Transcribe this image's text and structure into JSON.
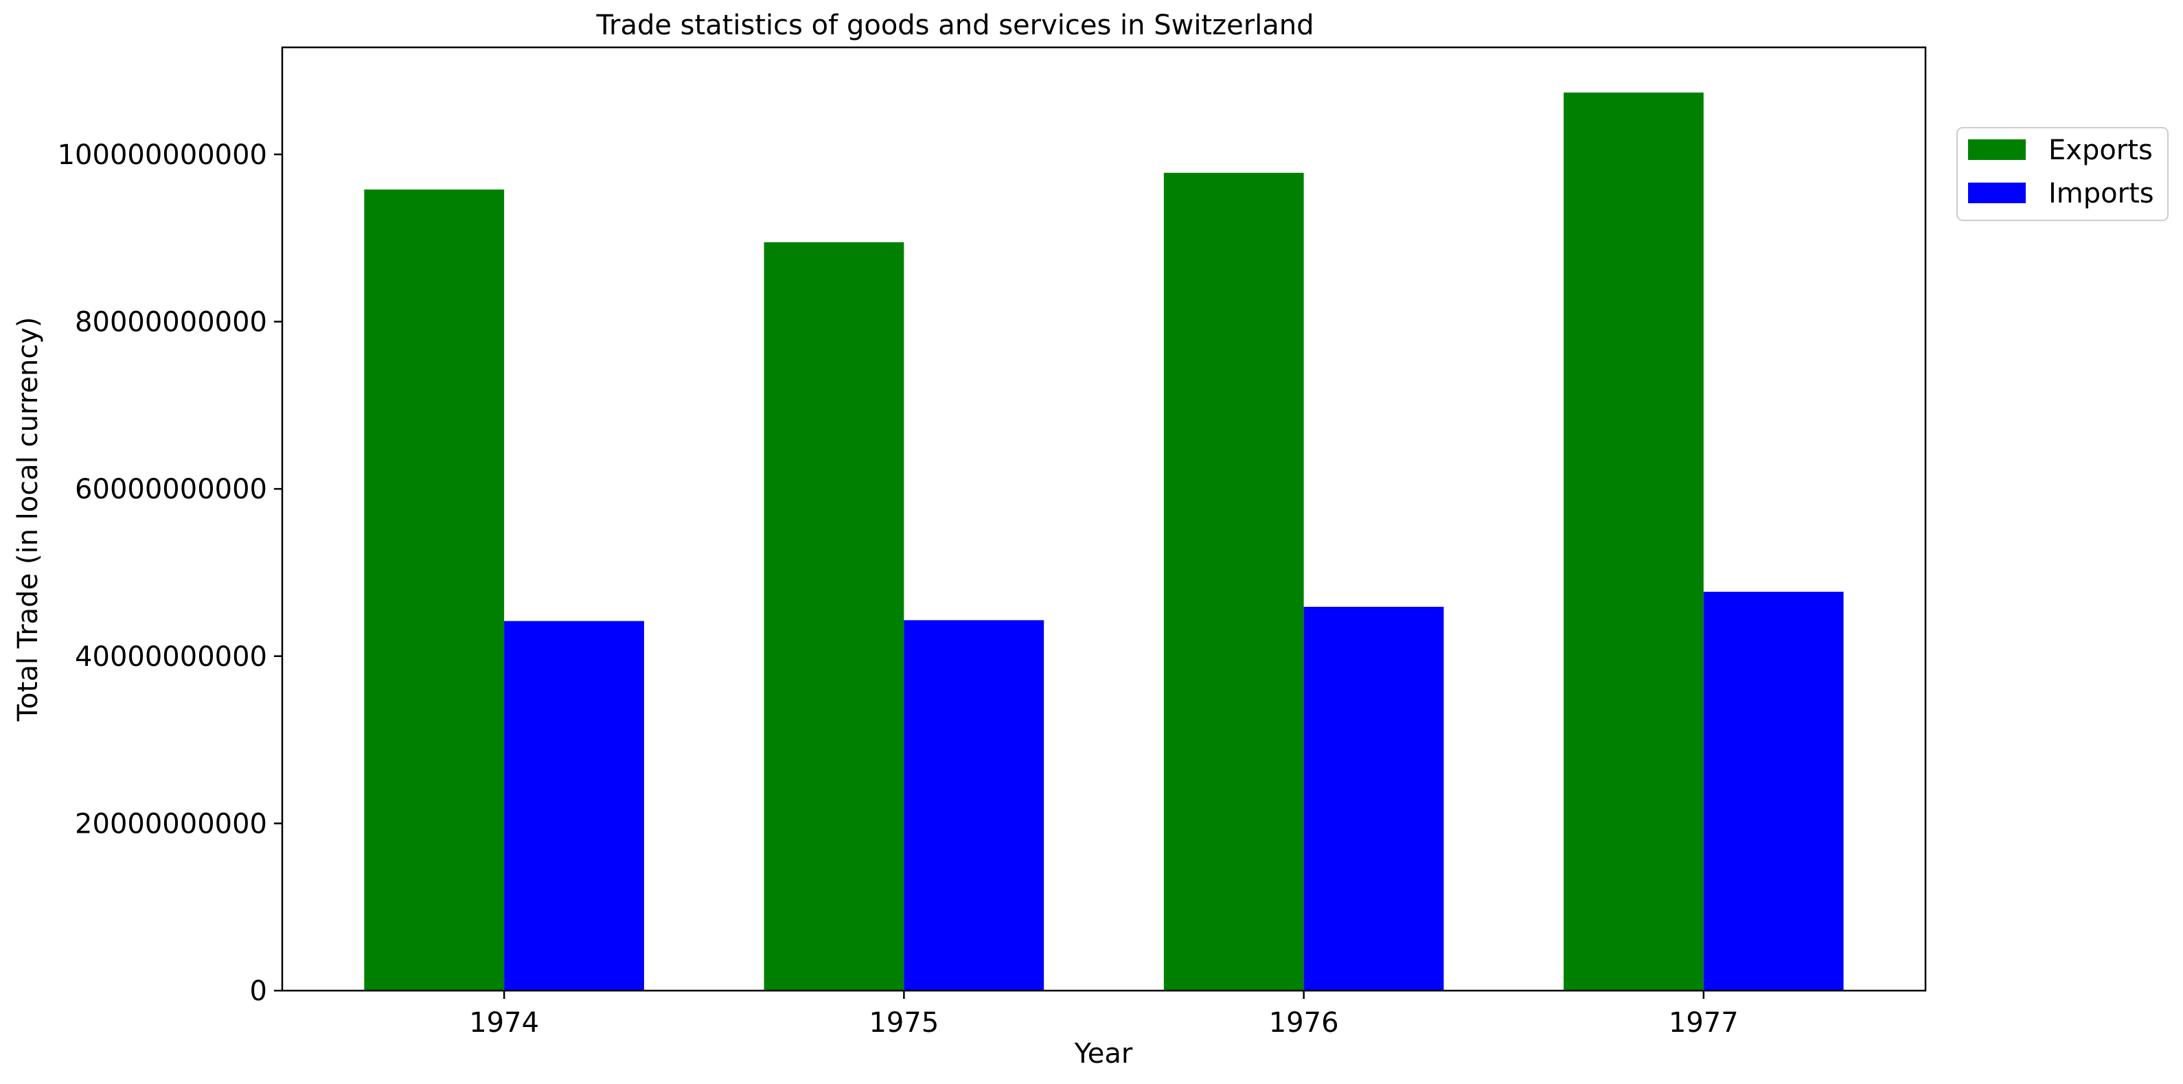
{
  "chart_data": {
    "type": "bar",
    "title": "Trade statistics of goods and services in Switzerland",
    "xlabel": "Year",
    "ylabel": "Total Trade (in local currency)",
    "categories": [
      "1974",
      "1975",
      "1976",
      "1977"
    ],
    "series": [
      {
        "name": "Exports",
        "color": "#008000",
        "values": [
          95800000000,
          89500000000,
          97800000000,
          107400000000
        ]
      },
      {
        "name": "Imports",
        "color": "#0000ff",
        "values": [
          44200000000,
          44300000000,
          45900000000,
          47700000000
        ]
      }
    ],
    "ylim": [
      0,
      112800000000
    ],
    "yticks": [
      0,
      20000000000,
      40000000000,
      60000000000,
      80000000000,
      100000000000
    ],
    "ytick_labels": [
      "0",
      "20000000000",
      "40000000000",
      "60000000000",
      "80000000000",
      "100000000000"
    ],
    "grid": false,
    "legend_position": "upper-right-outside"
  }
}
